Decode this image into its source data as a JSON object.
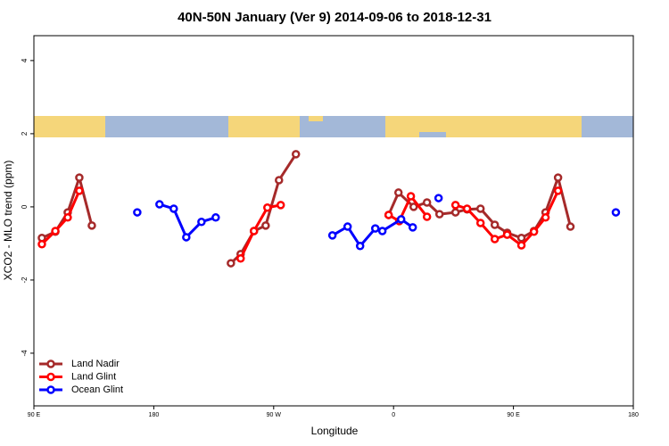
{
  "chart_data": {
    "type": "line",
    "title": "40N-50N January (Ver 9)   2014-09-06 to 2018-12-31",
    "x_label": "Longitude",
    "y_label": "XCO2 - MLO trend (ppm)",
    "xlim": [
      90,
      540
    ],
    "ylim": [
      -5.44,
      4.68
    ],
    "xticks": [
      {
        "value": 90,
        "label": "90 E"
      },
      {
        "value": 180,
        "label": "180"
      },
      {
        "value": 270,
        "label": "90 W"
      },
      {
        "value": 360,
        "label": "0"
      },
      {
        "value": 450,
        "label": "90 E"
      },
      {
        "value": 540,
        "label": "180"
      }
    ],
    "yticks": [
      -4,
      -2,
      0,
      2,
      4
    ],
    "legend": "bottom-left",
    "series": [
      {
        "name": "Land Nadir",
        "color": "#a52a2a",
        "x": [
          96.0,
          106.1,
          115.4,
          124.1,
          133.5,
          null,
          237.9,
          245.2,
          255.2,
          264.0,
          274.0,
          286.7,
          null,
          356.3,
          363.7,
          375.1,
          385.1,
          394.5,
          406.5,
          415.2,
          425.3,
          436.0,
          445.3,
          456.0,
          465.4,
          474.1,
          483.5,
          492.8
        ],
        "values": [
          -0.85,
          -0.68,
          -0.15,
          0.8,
          -0.51,
          null,
          -1.54,
          -1.29,
          -0.66,
          -0.51,
          0.73,
          1.44,
          null,
          -0.22,
          0.39,
          0,
          0.12,
          -0.2,
          -0.15,
          -0.07,
          -0.05,
          -0.49,
          -0.71,
          -0.85,
          -0.66,
          -0.15,
          0.8,
          -0.54
        ]
      },
      {
        "name": "Land Glint",
        "color": "#ff0000",
        "x": [
          96.0,
          106.1,
          115.4,
          124.1,
          null,
          245.2,
          255.2,
          265.3,
          275.3,
          null,
          356.3,
          364.3,
          373.0,
          385.1,
          null,
          406.5,
          415.2,
          425.3,
          436.0,
          445.3,
          456.0,
          465.4,
          474.1,
          483.5
        ],
        "values": [
          -1.02,
          -0.66,
          -0.29,
          0.44,
          null,
          -1.41,
          -0.66,
          -0.02,
          0.05,
          null,
          -0.22,
          -0.39,
          0.29,
          -0.27,
          null,
          0.05,
          -0.05,
          -0.44,
          -0.88,
          -0.76,
          -1.05,
          -0.68,
          -0.29,
          0.44
        ]
      },
      {
        "name": "Ocean Glint",
        "color": "#0000ff",
        "x": [
          167.6,
          null,
          184.3,
          195.0,
          204.4,
          215.8,
          226.5,
          null,
          314.1,
          325.5,
          334.9,
          346.3,
          351.6,
          365.7,
          374.4,
          null,
          393.8,
          null,
          526.9
        ],
        "values": [
          -0.15,
          null,
          0.07,
          -0.05,
          -0.83,
          -0.41,
          -0.29,
          null,
          -0.78,
          -0.54,
          -1.07,
          -0.59,
          -0.66,
          -0.34,
          -0.56,
          null,
          0.24,
          null,
          -0.15
        ]
      }
    ]
  }
}
